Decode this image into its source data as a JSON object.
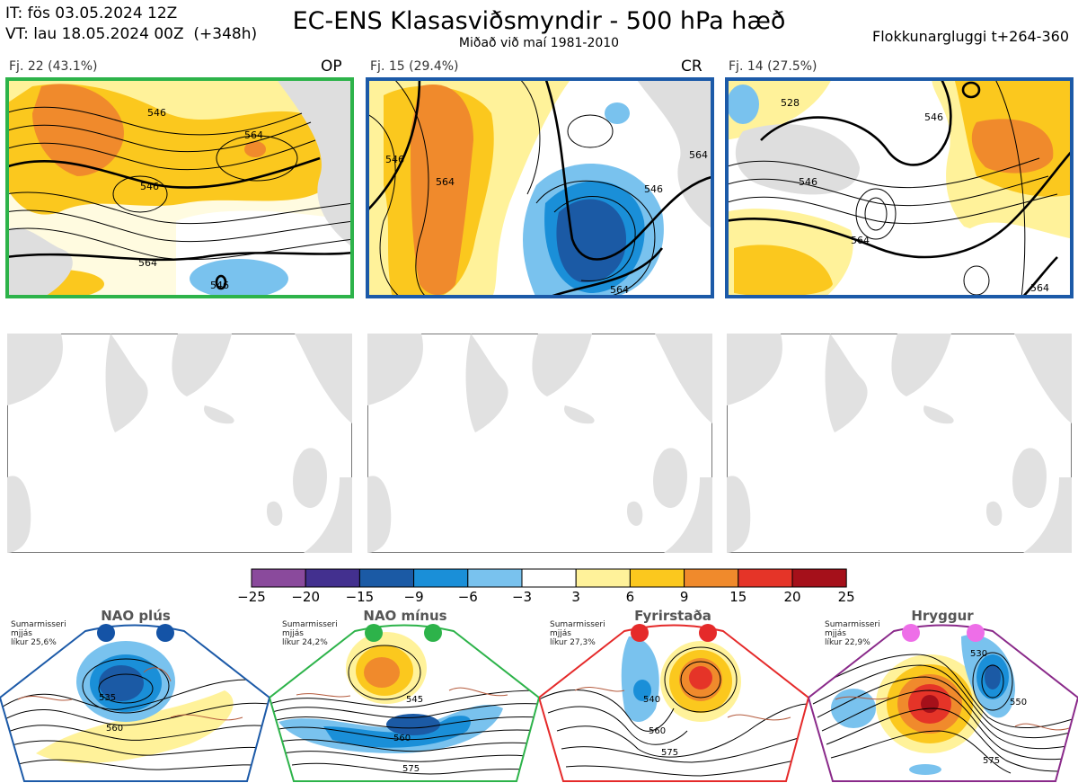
{
  "header": {
    "it_line": "IT: fös 03.05.2024 12Z",
    "vt_line": "VT: lau 18.05.2024 00Z  (+348h)",
    "title": "EC-ENS Klasasviðsmyndir - 500 hPa hæð",
    "subtitle": "Miðað við maí 1981-2010",
    "window": "Flokkunargluggi t+264-360"
  },
  "clusters": [
    {
      "label": "Fj. 22 (43.1%)",
      "tag": "OP",
      "frame_color": "#2db34a",
      "contours": [
        "546",
        "564",
        "546",
        "564",
        "546"
      ]
    },
    {
      "label": "Fj. 15 (29.4%)",
      "tag": "CR",
      "frame_color": "#1c5aa8",
      "contours": [
        "546",
        "564",
        "546",
        "564",
        "564"
      ]
    },
    {
      "label": "Fj. 14 (27.5%)",
      "tag": "",
      "frame_color": "#1c5aa8",
      "contours": [
        "528",
        "546",
        "546",
        "564",
        "564"
      ]
    }
  ],
  "colorbar": {
    "ticks": [
      "−25",
      "−20",
      "−15",
      "−9",
      "−6",
      "−3",
      "3",
      "6",
      "9",
      "15",
      "20",
      "25"
    ],
    "colors": [
      "#8a4a9c",
      "#43308f",
      "#1b5aa5",
      "#1a8fd8",
      "#79c2ee",
      "#ffffff",
      "#fff29a",
      "#fbc81e",
      "#f08a2c",
      "#e53428",
      "#a5101a"
    ]
  },
  "regimes": [
    {
      "name": "NAO plús",
      "season": "Sumarmisseri",
      "word": "mjjás",
      "prob": "líkur 25,6%",
      "dot_color": "#1453a6",
      "frame_color": "#1c5aa8",
      "contours": [
        "535",
        "560"
      ]
    },
    {
      "name": "NAO mínus",
      "season": "Sumarmisseri",
      "word": "mjjás",
      "prob": "líkur 24,2%",
      "dot_color": "#2db34a",
      "frame_color": "#2db34a",
      "contours": [
        "545",
        "560",
        "575"
      ]
    },
    {
      "name": "Fyrirstaða",
      "season": "Sumarmisseri",
      "word": "mjjás",
      "prob": "líkur 27,3%",
      "dot_color": "#e52a2a",
      "frame_color": "#e52a2a",
      "contours": [
        "540",
        "560",
        "575"
      ]
    },
    {
      "name": "Hryggur",
      "season": "Sumarmisseri",
      "word": "mjjás",
      "prob": "líkur 22,9%",
      "dot_color": "#ee6ee8",
      "frame_color": "#8a2a8a",
      "contours": [
        "530",
        "550",
        "575"
      ]
    }
  ]
}
